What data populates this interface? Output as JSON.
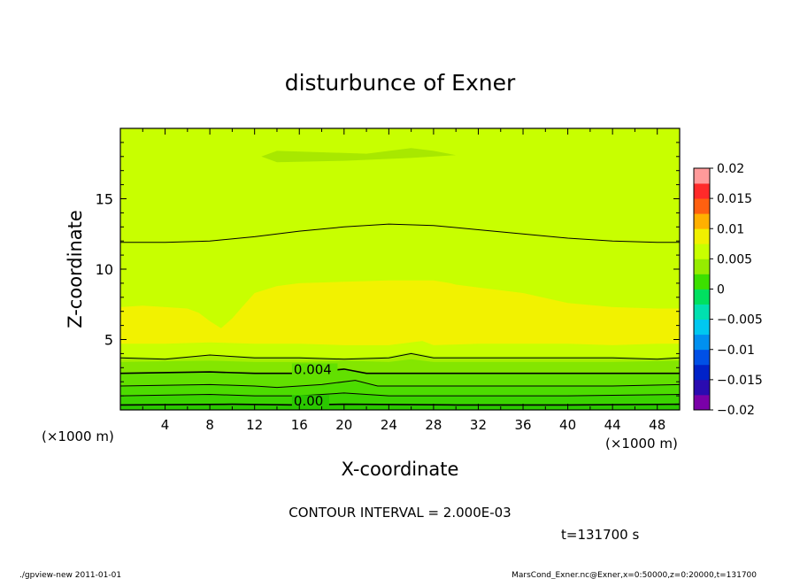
{
  "chart_data": {
    "type": "contour",
    "title": "disturbunce of Exner",
    "xlabel": "X-coordinate",
    "ylabel": "Z-coordinate",
    "x_unit_left": "(×1000 m)",
    "x_unit_right": "(×1000 m)",
    "xlim": [
      0,
      50
    ],
    "ylim": [
      0,
      20
    ],
    "x_ticks": [
      "4",
      "8",
      "12",
      "16",
      "20",
      "24",
      "28",
      "32",
      "36",
      "40",
      "44",
      "48"
    ],
    "y_ticks": [
      "5",
      "10",
      "15"
    ],
    "contour_labels": [
      "0.004",
      "0.00"
    ],
    "contour_interval_text": "CONTOUR INTERVAL = 2.000E-03",
    "time_text": "t=131700 s",
    "footer_left": "./gpview-new  2011-01-01",
    "footer_right": "MarsCond_Exner.nc@Exner,x=0:50000,z=0:20000,t=131700",
    "colorbar": {
      "labels": [
        "0.02",
        "0.015",
        "0.01",
        "0.005",
        "0",
        "−0.005",
        "−0.01",
        "−0.015",
        "−0.02"
      ],
      "levels": [
        {
          "range": [
            -0.02,
            -0.0175
          ],
          "color": "#7a00a8"
        },
        {
          "range": [
            -0.0175,
            -0.015
          ],
          "color": "#2a0bb0"
        },
        {
          "range": [
            -0.015,
            -0.0125
          ],
          "color": "#0022c8"
        },
        {
          "range": [
            -0.0125,
            -0.01
          ],
          "color": "#0050e6"
        },
        {
          "range": [
            -0.01,
            -0.0075
          ],
          "color": "#0090f0"
        },
        {
          "range": [
            -0.0075,
            -0.005
          ],
          "color": "#00c8f0"
        },
        {
          "range": [
            -0.005,
            -0.0025
          ],
          "color": "#00e0b0"
        },
        {
          "range": [
            -0.0025,
            0
          ],
          "color": "#00e060"
        },
        {
          "range": [
            0,
            0.0025
          ],
          "color": "#3ce000"
        },
        {
          "range": [
            0.0025,
            0.005
          ],
          "color": "#96ec00"
        },
        {
          "range": [
            0.005,
            0.0075
          ],
          "color": "#c8ff00"
        },
        {
          "range": [
            0.0075,
            0.01
          ],
          "color": "#f0f000"
        },
        {
          "range": [
            0.01,
            0.0125
          ],
          "color": "#ffb000"
        },
        {
          "range": [
            0.0125,
            0.015
          ],
          "color": "#ff6010"
        },
        {
          "range": [
            0.015,
            0.0175
          ],
          "color": "#ff2a2a"
        },
        {
          "range": [
            0.0175,
            0.02
          ],
          "color": "#ff9a9a"
        }
      ]
    },
    "regions": [
      {
        "level": "0.0025..0.005",
        "color": "#a6ee00",
        "top": [
          [
            0,
            3.8
          ],
          [
            4,
            3.7
          ],
          [
            8,
            3.9
          ],
          [
            12,
            3.8
          ],
          [
            16,
            3.8
          ],
          [
            20,
            3.7
          ],
          [
            24,
            3.8
          ],
          [
            26,
            4.1
          ],
          [
            28,
            3.8
          ],
          [
            32,
            3.8
          ],
          [
            36,
            3.8
          ],
          [
            40,
            3.8
          ],
          [
            44,
            3.8
          ],
          [
            48,
            3.7
          ],
          [
            50,
            3.8
          ]
        ]
      },
      {
        "level": "0.002..0.0025",
        "color": "#84e600",
        "top": [
          [
            0,
            3.4
          ],
          [
            8,
            3.5
          ],
          [
            12,
            3.4
          ],
          [
            16,
            3.4
          ],
          [
            20,
            3.5
          ],
          [
            24,
            3.4
          ],
          [
            26,
            3.6
          ],
          [
            28,
            3.4
          ],
          [
            36,
            3.4
          ],
          [
            44,
            3.4
          ],
          [
            50,
            3.5
          ]
        ]
      },
      {
        "level": "0.0015..0.002",
        "color": "#62e000",
        "top": [
          [
            0,
            2.6
          ],
          [
            8,
            2.7
          ],
          [
            12,
            2.6
          ],
          [
            16,
            2.6
          ],
          [
            20,
            2.9
          ],
          [
            22,
            2.6
          ],
          [
            26,
            2.6
          ],
          [
            32,
            2.6
          ],
          [
            40,
            2.6
          ],
          [
            50,
            2.6
          ]
        ]
      },
      {
        "level": "0.001..0.0015",
        "color": "#4cdc00",
        "top": [
          [
            0,
            1.7
          ],
          [
            8,
            1.8
          ],
          [
            12,
            1.7
          ],
          [
            14,
            1.6
          ],
          [
            18,
            1.8
          ],
          [
            21,
            2.1
          ],
          [
            23,
            1.7
          ],
          [
            28,
            1.7
          ],
          [
            36,
            1.7
          ],
          [
            44,
            1.7
          ],
          [
            50,
            1.8
          ]
        ]
      },
      {
        "level": "0.0005..0.001",
        "color": "#3ad400",
        "top": [
          [
            0,
            1.0
          ],
          [
            8,
            1.1
          ],
          [
            12,
            1.0
          ],
          [
            16,
            1.0
          ],
          [
            20,
            1.2
          ],
          [
            24,
            1.0
          ],
          [
            32,
            1.0
          ],
          [
            40,
            1.0
          ],
          [
            50,
            1.1
          ]
        ]
      },
      {
        "level": "0..0.0005",
        "color": "#2ac800",
        "top": [
          [
            0,
            0.35
          ],
          [
            10,
            0.4
          ],
          [
            16,
            0.35
          ],
          [
            20,
            0.4
          ],
          [
            30,
            0.35
          ],
          [
            40,
            0.35
          ],
          [
            50,
            0.4
          ]
        ]
      }
    ],
    "yellow_region": {
      "level": "0.0075..0.01",
      "color": "#f2f200",
      "top": [
        [
          0,
          7.3
        ],
        [
          2,
          7.4
        ],
        [
          4,
          7.3
        ],
        [
          6,
          7.2
        ],
        [
          7,
          6.9
        ],
        [
          8,
          6.3
        ],
        [
          9,
          5.8
        ],
        [
          10,
          6.5
        ],
        [
          11,
          7.4
        ],
        [
          12,
          8.3
        ],
        [
          14,
          8.8
        ],
        [
          16,
          9.0
        ],
        [
          20,
          9.1
        ],
        [
          24,
          9.2
        ],
        [
          28,
          9.2
        ],
        [
          29.5,
          9.0
        ],
        [
          30,
          8.9
        ],
        [
          32,
          8.7
        ],
        [
          36,
          8.3
        ],
        [
          40,
          7.6
        ],
        [
          44,
          7.3
        ],
        [
          48,
          7.2
        ],
        [
          50,
          7.2
        ]
      ],
      "bottom": [
        [
          0,
          4.7
        ],
        [
          4,
          4.7
        ],
        [
          8,
          4.8
        ],
        [
          12,
          4.7
        ],
        [
          16,
          4.7
        ],
        [
          20,
          4.6
        ],
        [
          24,
          4.6
        ],
        [
          27,
          4.9
        ],
        [
          28,
          4.6
        ],
        [
          32,
          4.7
        ],
        [
          36,
          4.7
        ],
        [
          40,
          4.7
        ],
        [
          44,
          4.6
        ],
        [
          48,
          4.7
        ],
        [
          50,
          4.7
        ]
      ]
    },
    "top_patch": {
      "color": "#a8e800",
      "points": [
        [
          12.6,
          18.0
        ],
        [
          14,
          18.4
        ],
        [
          18,
          18.3
        ],
        [
          22,
          18.2
        ],
        [
          26,
          18.6
        ],
        [
          28,
          18.4
        ],
        [
          30,
          18.1
        ],
        [
          26,
          17.9
        ],
        [
          20,
          17.7
        ],
        [
          14,
          17.6
        ],
        [
          12.6,
          18.0
        ]
      ]
    },
    "contour_lines": [
      {
        "value": 0.006,
        "points": [
          [
            0,
            11.9
          ],
          [
            4,
            11.9
          ],
          [
            8,
            12.0
          ],
          [
            12,
            12.3
          ],
          [
            16,
            12.7
          ],
          [
            20,
            13.0
          ],
          [
            24,
            13.2
          ],
          [
            28,
            13.1
          ],
          [
            32,
            12.8
          ],
          [
            36,
            12.5
          ],
          [
            40,
            12.2
          ],
          [
            44,
            12.0
          ],
          [
            48,
            11.9
          ],
          [
            50,
            11.9
          ]
        ]
      },
      {
        "value": 0.005,
        "points": [
          [
            0,
            3.7
          ],
          [
            4,
            3.6
          ],
          [
            8,
            3.9
          ],
          [
            12,
            3.7
          ],
          [
            16,
            3.7
          ],
          [
            20,
            3.6
          ],
          [
            24,
            3.7
          ],
          [
            26,
            4.0
          ],
          [
            28,
            3.7
          ],
          [
            32,
            3.7
          ],
          [
            36,
            3.7
          ],
          [
            40,
            3.7
          ],
          [
            44,
            3.7
          ],
          [
            48,
            3.6
          ],
          [
            50,
            3.7
          ]
        ]
      },
      {
        "value": 0.004,
        "points": [
          [
            0,
            2.6
          ],
          [
            8,
            2.7
          ],
          [
            12,
            2.6
          ],
          [
            16,
            2.6
          ],
          [
            20,
            2.9
          ],
          [
            22,
            2.6
          ],
          [
            26,
            2.6
          ],
          [
            32,
            2.6
          ],
          [
            40,
            2.6
          ],
          [
            50,
            2.6
          ]
        ]
      },
      {
        "value": 0.003,
        "points": [
          [
            0,
            1.7
          ],
          [
            8,
            1.8
          ],
          [
            12,
            1.7
          ],
          [
            14,
            1.6
          ],
          [
            18,
            1.8
          ],
          [
            21,
            2.1
          ],
          [
            23,
            1.7
          ],
          [
            28,
            1.7
          ],
          [
            36,
            1.7
          ],
          [
            44,
            1.7
          ],
          [
            50,
            1.8
          ]
        ]
      },
      {
        "value": 0.002,
        "points": [
          [
            0,
            1.0
          ],
          [
            8,
            1.1
          ],
          [
            12,
            1.0
          ],
          [
            16,
            1.0
          ],
          [
            20,
            1.2
          ],
          [
            24,
            1.0
          ],
          [
            32,
            1.0
          ],
          [
            40,
            1.0
          ],
          [
            50,
            1.1
          ]
        ]
      },
      {
        "value": 0.0,
        "points": [
          [
            0,
            0.35
          ],
          [
            10,
            0.4
          ],
          [
            16,
            0.35
          ],
          [
            20,
            0.4
          ],
          [
            30,
            0.35
          ],
          [
            40,
            0.35
          ],
          [
            50,
            0.4
          ]
        ]
      }
    ],
    "background_color": "#c8ff00"
  }
}
